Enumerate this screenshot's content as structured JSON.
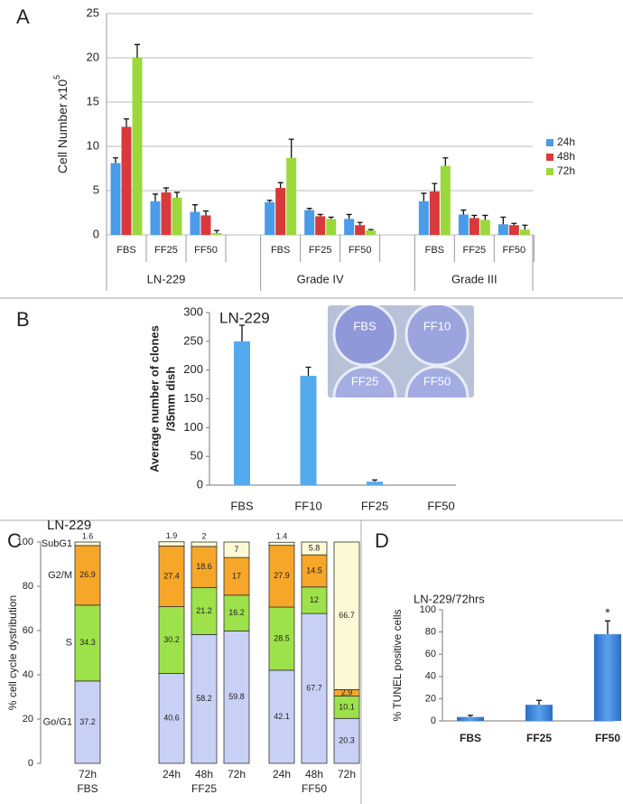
{
  "chart_data": [
    {
      "type": "grouped_bar",
      "panel_label": "A",
      "y_label": "Cell Number x10",
      "y_label_superscript": "5",
      "groups": [
        "LN-229",
        "Grade IV",
        "Grade III"
      ],
      "categories": [
        "FBS",
        "FF25",
        "FF50",
        "FBS",
        "FF25",
        "FF50",
        "FBS",
        "FF25",
        "FF50"
      ],
      "series": [
        {
          "name": "24h",
          "color": "#4a9be8",
          "values": [
            8.1,
            3.8,
            2.6,
            3.7,
            2.8,
            1.8,
            3.8,
            2.3,
            1.2
          ],
          "errors": [
            0.6,
            0.8,
            0.8,
            0.2,
            0.2,
            0.5,
            0.9,
            0.5,
            0.8
          ]
        },
        {
          "name": "48h",
          "color": "#d9393b",
          "values": [
            12.2,
            4.8,
            2.2,
            5.3,
            2.1,
            1.1,
            4.9,
            1.9,
            1.1
          ],
          "errors": [
            0.9,
            0.5,
            0.5,
            0.6,
            0.2,
            0.3,
            0.9,
            0.3,
            0.2
          ]
        },
        {
          "name": "72h",
          "color": "#9bd83c",
          "values": [
            20,
            4.2,
            0.2,
            8.7,
            1.8,
            0.5,
            7.8,
            1.7,
            0.6
          ],
          "errors": [
            1.5,
            0.6,
            0.3,
            2.1,
            0.2,
            0.1,
            0.9,
            0.5,
            0.5
          ]
        }
      ],
      "ylim": [
        0,
        25
      ],
      "yticks": [
        0,
        5,
        10,
        15,
        20,
        25
      ],
      "grid": true,
      "legend": "right"
    },
    {
      "type": "bar",
      "panel_label": "B",
      "title": "LN-229",
      "y_label": [
        "Average number of clones",
        "/35mm dish"
      ],
      "categories": [
        "FBS",
        "FF10",
        "FF25",
        "FF50"
      ],
      "values": [
        250,
        190,
        6,
        0
      ],
      "errors": [
        28,
        15,
        3,
        0
      ],
      "color": "#55aaee",
      "ylim": [
        0,
        300
      ],
      "yticks": [
        0,
        50,
        100,
        150,
        200,
        250,
        300
      ],
      "inset_labels": [
        "FBS",
        "FF10",
        "FF25",
        "FF50"
      ]
    },
    {
      "type": "stacked_bar",
      "panel_label": "C",
      "title": "LN-229",
      "y_label": "% cell cycle dystribution",
      "groups": [
        {
          "name": "FBS",
          "categories": [
            "72h"
          ]
        },
        {
          "name": "FF25",
          "categories": [
            "24h",
            "48h",
            "72h"
          ]
        },
        {
          "name": "FF50",
          "categories": [
            "24h",
            "48h",
            "72h"
          ]
        }
      ],
      "series": [
        {
          "name": "Go/G1",
          "color": "#c9d0f5",
          "values": [
            37.2,
            40.6,
            58.2,
            59.8,
            42.1,
            67.7,
            20.3
          ]
        },
        {
          "name": "S",
          "color": "#9de24a",
          "values": [
            34.3,
            30.2,
            21.2,
            16.2,
            28.5,
            12,
            10.1
          ]
        },
        {
          "name": "G2/M",
          "color": "#f6a628",
          "values": [
            26.9,
            27.4,
            18.6,
            17,
            27.9,
            14.5,
            2.9
          ]
        },
        {
          "name": "SubG1",
          "color": "#fcfad6",
          "values": [
            1.6,
            1.9,
            2,
            7,
            1.4,
            5.8,
            66.7
          ]
        }
      ],
      "ylim": [
        0,
        100
      ],
      "yticks": [
        0,
        20,
        40,
        60,
        80,
        100
      ]
    },
    {
      "type": "bar",
      "panel_label": "D",
      "title": "LN-229/72hrs",
      "y_label": "% TUNEL positive cells",
      "categories": [
        "FBS",
        "FF25",
        "FF50"
      ],
      "values": [
        3.5,
        14.5,
        78
      ],
      "errors": [
        1.5,
        4,
        12
      ],
      "color": "#3f85dd",
      "ylim": [
        0,
        100
      ],
      "yticks": [
        0,
        20,
        40,
        60,
        80,
        100
      ],
      "annotation": {
        "text": "*",
        "category": "FF50"
      }
    }
  ]
}
